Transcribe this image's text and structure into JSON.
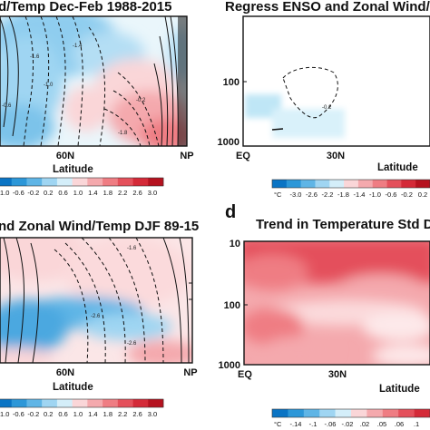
{
  "chart_data": [
    {
      "type": "heatmap",
      "panel": "a",
      "title": "d/Temp Dec-Feb 1988-2015",
      "xlabel": "Latitude",
      "xticks": [
        "60N",
        "NP"
      ],
      "colorbar": {
        "ticks": [
          "-1.0",
          "-0.6",
          "-0.2",
          "0.2",
          "0.6",
          "1.0",
          "1.4",
          "1.8",
          "2.2",
          "2.6",
          "3.0"
        ],
        "colors": [
          "#0a74c4",
          "#2c97d8",
          "#5fb5e6",
          "#9fd5f2",
          "#d4eef9",
          "#fad6d8",
          "#f4a9ad",
          "#ef7d83",
          "#e4505b",
          "#d42a38",
          "#b5121f"
        ]
      },
      "contour_labels": [
        "1.6",
        "1.0",
        "1.4",
        "-1.4",
        "-0.6",
        "-1.8",
        "-0.2"
      ]
    },
    {
      "type": "heatmap",
      "panel": "b",
      "title": "Regress ENSO and Zonal Wind/T",
      "xlabel": "Latitude",
      "xticks": [
        "EQ",
        "30N"
      ],
      "yticks": [
        "100",
        "1000"
      ],
      "colorbar": {
        "unit": "°C",
        "ticks": [
          "-3.0",
          "-2.6",
          "-2.2",
          "-1.8",
          "-1.4",
          "-1.0",
          "-0.6",
          "-0.2",
          "0.2",
          "0.6"
        ],
        "colors": [
          "#0a74c4",
          "#2c97d8",
          "#5fb5e6",
          "#9fd5f2",
          "#d4eef9",
          "#fad6d8",
          "#f4a9ad",
          "#ef7d83",
          "#e4505b",
          "#d42a38",
          "#b5121f"
        ]
      },
      "contour_labels": [
        "-0.2"
      ]
    },
    {
      "type": "heatmap",
      "panel": "c",
      "title": "nd Zonal Wind/Temp DJF 89-15",
      "xlabel": "Latitude",
      "xticks": [
        "60N",
        "NP"
      ],
      "colorbar": {
        "ticks": [
          "-1.0",
          "-0.6",
          "-0.2",
          "0.2",
          "0.6",
          "1.0",
          "1.4",
          "1.8",
          "2.2",
          "2.6",
          "3.0"
        ],
        "colors": [
          "#0a74c4",
          "#2c97d8",
          "#5fb5e6",
          "#9fd5f2",
          "#d4eef9",
          "#fad6d8",
          "#f4a9ad",
          "#ef7d83",
          "#e4505b",
          "#d42a38",
          "#b5121f"
        ]
      },
      "contour_labels": [
        "-1.6",
        "-2.6",
        "-2.6"
      ]
    },
    {
      "type": "heatmap",
      "panel": "d",
      "title": "Trend in Temperature Std De",
      "xlabel": "Latitude",
      "xticks": [
        "EQ",
        "30N"
      ],
      "yticks": [
        "10",
        "100",
        "1000"
      ],
      "colorbar": {
        "unit": "°C",
        "ticks": [
          "-.14",
          "-.1",
          "-.06",
          "-.02",
          ".02",
          ".05",
          ".06",
          ".1"
        ],
        "colors": [
          "#0a74c4",
          "#2c97d8",
          "#5fb5e6",
          "#9fd5f2",
          "#d4eef9",
          "#fad6d8",
          "#f4a9ad",
          "#ef7d83",
          "#e4505b",
          "#d42a38"
        ]
      }
    }
  ]
}
